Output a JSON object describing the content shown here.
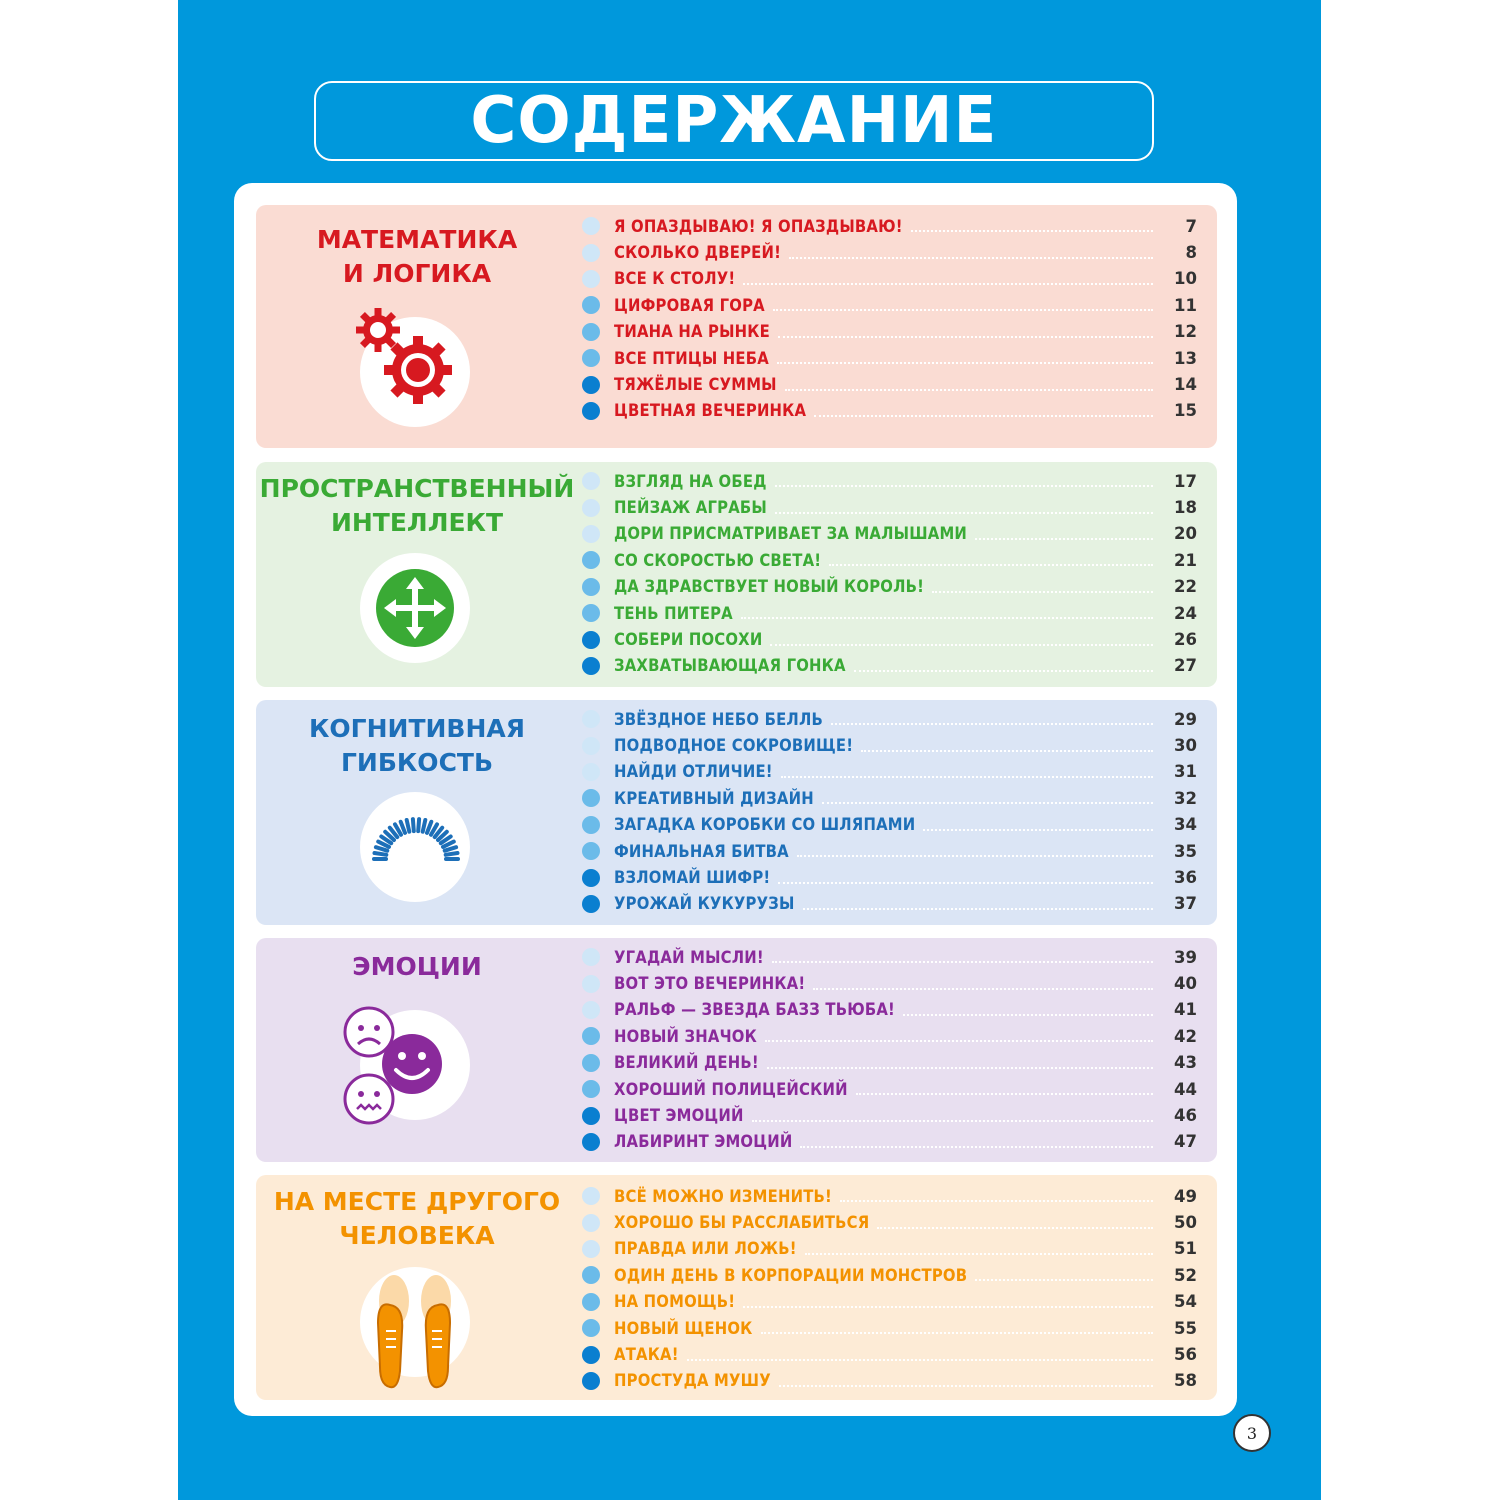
{
  "title": "СОДЕРЖАНИЕ",
  "page_number": "3",
  "colors": {
    "background": "#0098dc",
    "bullet_light": "#cfe6f7",
    "bullet_mid": "#6bbbe9",
    "bullet_dark": "#0a7fd0"
  },
  "sections": [
    {
      "title_lines": [
        "МАТЕМАТИКА",
        "И ЛОГИКА"
      ],
      "icon": "gears-icon",
      "title_color": "#d71920",
      "bg_color": "#fadcd3",
      "items": [
        {
          "label": "Я ОПАЗДЫВАЮ! Я ОПАЗДЫВАЮ!",
          "page": "7"
        },
        {
          "label": "СКОЛЬКО ДВЕРЕЙ!",
          "page": "8"
        },
        {
          "label": "ВСЕ К СТОЛУ!",
          "page": "10"
        },
        {
          "label": "ЦИФРОВАЯ ГОРА",
          "page": "11"
        },
        {
          "label": "ТИАНА НА РЫНКЕ",
          "page": "12"
        },
        {
          "label": "ВСЕ ПТИЦЫ НЕБА",
          "page": "13"
        },
        {
          "label": "ТЯЖЁЛЫЕ СУММЫ",
          "page": "14"
        },
        {
          "label": "ЦВЕТНАЯ ВЕЧЕРИНКА",
          "page": "15"
        }
      ]
    },
    {
      "title_lines": [
        "ПРОСТРАНСТВЕННЫЙ",
        "ИНТЕЛЛЕКТ"
      ],
      "icon": "move-arrows-icon",
      "title_color": "#3aaa35",
      "bg_color": "#e5f2e1",
      "items": [
        {
          "label": "ВЗГЛЯД НА ОБЕД",
          "page": "17"
        },
        {
          "label": "ПЕЙЗАЖ АГРАБЫ",
          "page": "18"
        },
        {
          "label": "ДОРИ ПРИСМАТРИВАЕТ ЗА МАЛЫШАМИ",
          "page": "20"
        },
        {
          "label": "СО СКОРОСТЬЮ СВЕТА!",
          "page": "21"
        },
        {
          "label": "ДА ЗДРАВСТВУЕТ НОВЫЙ КОРОЛЬ!",
          "page": "22"
        },
        {
          "label": "ТЕНЬ ПИТЕРА",
          "page": "24"
        },
        {
          "label": "СОБЕРИ ПОСОХИ",
          "page": "26"
        },
        {
          "label": "ЗАХВАТЫВАЮЩАЯ ГОНКА",
          "page": "27"
        }
      ]
    },
    {
      "title_lines": [
        "КОГНИТИВНАЯ",
        "ГИБКОСТЬ"
      ],
      "icon": "spring-icon",
      "title_color": "#1d6fb8",
      "bg_color": "#dbe5f5",
      "items": [
        {
          "label": "ЗВЁЗДНОЕ НЕБО БЕЛЛЬ",
          "page": "29"
        },
        {
          "label": "ПОДВОДНОЕ СОКРОВИЩЕ!",
          "page": "30"
        },
        {
          "label": "НАЙДИ ОТЛИЧИЕ!",
          "page": "31"
        },
        {
          "label": "КРЕАТИВНЫЙ ДИЗАЙН",
          "page": "32"
        },
        {
          "label": "ЗАГАДКА КОРОБКИ СО ШЛЯПАМИ",
          "page": "34"
        },
        {
          "label": "ФИНАЛЬНАЯ БИТВА",
          "page": "35"
        },
        {
          "label": "ВЗЛОМАЙ ШИФР!",
          "page": "36"
        },
        {
          "label": "УРОЖАЙ КУКУРУЗЫ",
          "page": "37"
        }
      ]
    },
    {
      "title_lines": [
        "ЭМОЦИИ"
      ],
      "icon": "emotion-faces-icon",
      "title_color": "#8a2a9b",
      "bg_color": "#e8dff0",
      "items": [
        {
          "label": "УГАДАЙ МЫСЛИ!",
          "page": "39"
        },
        {
          "label": "ВОТ ЭТО ВЕЧЕРИНКА!",
          "page": "40"
        },
        {
          "label": "РАЛЬФ — ЗВЕЗДА БАЗЗ ТЬЮБА!",
          "page": "41"
        },
        {
          "label": "НОВЫЙ ЗНАЧОК",
          "page": "42"
        },
        {
          "label": "ВЕЛИКИЙ ДЕНЬ!",
          "page": "43"
        },
        {
          "label": "ХОРОШИЙ ПОЛИЦЕЙСКИЙ",
          "page": "44"
        },
        {
          "label": "ЦВЕТ ЭМОЦИЙ",
          "page": "46"
        },
        {
          "label": "ЛАБИРИНТ ЭМОЦИЙ",
          "page": "47"
        }
      ]
    },
    {
      "title_lines": [
        "НА МЕСТЕ ДРУГОГО",
        "ЧЕЛОВЕКА"
      ],
      "icon": "shoes-icon",
      "title_color": "#f39200",
      "bg_color": "#fdebd6",
      "items": [
        {
          "label": "ВСЁ МОЖНО ИЗМЕНИТЬ!",
          "page": "49"
        },
        {
          "label": "ХОРОШО БЫ РАССЛАБИТЬСЯ",
          "page": "50"
        },
        {
          "label": "ПРАВДА ИЛИ ЛОЖЬ!",
          "page": "51"
        },
        {
          "label": "ОДИН ДЕНЬ В КОРПОРАЦИИ МОНСТРОВ",
          "page": "52"
        },
        {
          "label": "НА ПОМОЩЬ!",
          "page": "54"
        },
        {
          "label": "НОВЫЙ ЩЕНОК",
          "page": "55"
        },
        {
          "label": "АТАКА!",
          "page": "56"
        },
        {
          "label": "ПРОСТУДА МУШУ",
          "page": "58"
        }
      ]
    }
  ]
}
